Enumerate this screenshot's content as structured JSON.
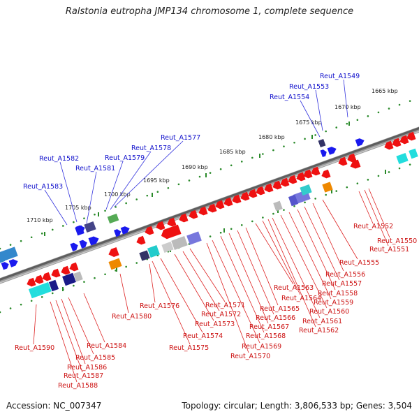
{
  "title": "Ralstonia eutropha JMP134 chromosome 1, complete sequence",
  "footer": {
    "accession": "Accession: NC_007347",
    "topology": "Topology: circular; Length: 3,806,533 bp; Genes: 3,504"
  },
  "ticks": [
    {
      "label": "1665 kbp"
    },
    {
      "label": "1670 kbp"
    },
    {
      "label": "1675 kbp"
    },
    {
      "label": "1680 kbp"
    },
    {
      "label": "1685 kbp"
    },
    {
      "label": "1690 kbp"
    },
    {
      "label": "1695 kbp"
    },
    {
      "label": "1700 kbp"
    },
    {
      "label": "1705 kbp"
    },
    {
      "label": "1710 kbp"
    }
  ],
  "top_labels": [
    {
      "name": "Reut_A1549"
    },
    {
      "name": "Reut_A1553"
    },
    {
      "name": "Reut_A1554"
    },
    {
      "name": "Reut_A1577"
    },
    {
      "name": "Reut_A1578"
    },
    {
      "name": "Reut_A1579"
    },
    {
      "name": "Reut_A1581"
    },
    {
      "name": "Reut_A1582"
    },
    {
      "name": "Reut_A1583"
    }
  ],
  "bottom_labels": [
    {
      "name": "Reut_A1552"
    },
    {
      "name": "Reut_A1550"
    },
    {
      "name": "Reut_A1551"
    },
    {
      "name": "Reut_A1555"
    },
    {
      "name": "Reut_A1556"
    },
    {
      "name": "Reut_A1557"
    },
    {
      "name": "Reut_A1558"
    },
    {
      "name": "Reut_A1559"
    },
    {
      "name": "Reut_A1560"
    },
    {
      "name": "Reut_A1563"
    },
    {
      "name": "Reut_A1564"
    },
    {
      "name": "Reut_A1561"
    },
    {
      "name": "Reut_A1562"
    },
    {
      "name": "Reut_A1565"
    },
    {
      "name": "Reut_A1566"
    },
    {
      "name": "Reut_A1567"
    },
    {
      "name": "Reut_A1568"
    },
    {
      "name": "Reut_A1569"
    },
    {
      "name": "Reut_A1570"
    },
    {
      "name": "Reut_A1571"
    },
    {
      "name": "Reut_A1572"
    },
    {
      "name": "Reut_A1573"
    },
    {
      "name": "Reut_A1574"
    },
    {
      "name": "Reut_A1575"
    },
    {
      "name": "Reut_A1576"
    },
    {
      "name": "Reut_A1580"
    },
    {
      "name": "Reut_A1584"
    },
    {
      "name": "Reut_A1585"
    },
    {
      "name": "Reut_A1586"
    },
    {
      "name": "Reut_A1587"
    },
    {
      "name": "Reut_A1588"
    },
    {
      "name": "Reut_A1590"
    }
  ],
  "colors": {
    "forward_gene": "#1a1aee",
    "reverse_gene": "#ee1111",
    "backbone": "#777777",
    "tick_dots": "#2a8a2a",
    "top_label": "#1111cc",
    "bottom_label": "#cc1111"
  }
}
